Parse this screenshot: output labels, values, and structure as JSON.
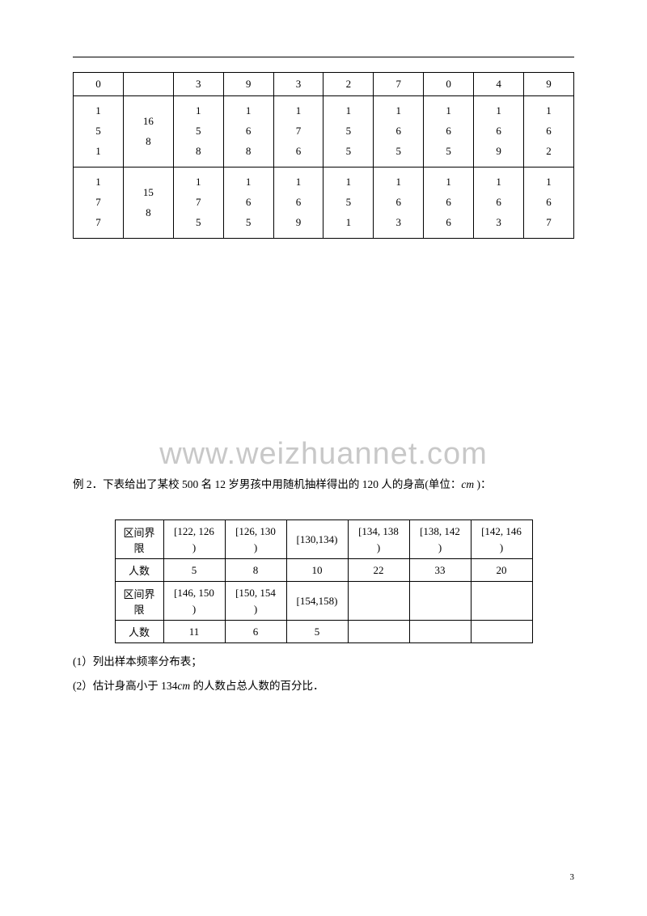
{
  "table1": {
    "row1": [
      "0",
      "",
      "3",
      "9",
      "3",
      "2",
      "7",
      "0",
      "4",
      "9"
    ],
    "row2": {
      "c0": [
        "1",
        "5",
        "1"
      ],
      "c1": [
        "16",
        "8",
        ""
      ],
      "c2": [
        "1",
        "5",
        "8"
      ],
      "c3": [
        "1",
        "6",
        "8"
      ],
      "c4": [
        "1",
        "7",
        "6"
      ],
      "c5": [
        "1",
        "5",
        "5"
      ],
      "c6": [
        "1",
        "6",
        "5"
      ],
      "c7": [
        "1",
        "6",
        "5"
      ],
      "c8": [
        "1",
        "6",
        "9"
      ],
      "c9": [
        "1",
        "6",
        "2"
      ]
    },
    "row3": {
      "c0": [
        "1",
        "7",
        "7"
      ],
      "c1": [
        "15",
        "8",
        ""
      ],
      "c2": [
        "1",
        "7",
        "5"
      ],
      "c3": [
        "1",
        "6",
        "5"
      ],
      "c4": [
        "1",
        "6",
        "9"
      ],
      "c5": [
        "1",
        "5",
        "1"
      ],
      "c6": [
        "1",
        "6",
        "3"
      ],
      "c7": [
        "1",
        "6",
        "6"
      ],
      "c8": [
        "1",
        "6",
        "3"
      ],
      "c9": [
        "1",
        "6",
        "7"
      ]
    }
  },
  "watermark": "www.weizhuannet.com",
  "para1_pre": "例 2．下表给出了某校 500 名 12 岁男孩中用随机抽样得出的 120 人的身高(单位：",
  "para1_unit": "cm",
  "para1_post": " )：",
  "table2": {
    "rowhdr_range": "区间界限",
    "rowhdr_count": "人数",
    "r1_ranges": [
      {
        "top": "[122, 126",
        "bot": ")"
      },
      {
        "top": "[126, 130",
        "bot": ")"
      },
      {
        "top": "",
        "bot": "[130,134)"
      },
      {
        "top": "[134, 138",
        "bot": ")"
      },
      {
        "top": "[138, 142",
        "bot": ")"
      },
      {
        "top": "[142, 146",
        "bot": ")"
      }
    ],
    "r1_counts": [
      "5",
      "8",
      "10",
      "22",
      "33",
      "20"
    ],
    "r2_ranges": [
      {
        "top": "[146, 150",
        "bot": ")"
      },
      {
        "top": "[150, 154",
        "bot": ")"
      },
      {
        "top": "",
        "bot": "[154,158)"
      },
      {
        "top": "",
        "bot": ""
      },
      {
        "top": "",
        "bot": ""
      },
      {
        "top": "",
        "bot": ""
      }
    ],
    "r2_counts": [
      "11",
      "6",
      "5",
      "",
      "",
      ""
    ]
  },
  "q1": "(1）列出样本频率分布表；",
  "q2_pre": "(2）估计身高小于 134",
  "q2_unit": "cm",
  "q2_post": " 的人数占总人数的百分比．",
  "page_number": "3"
}
